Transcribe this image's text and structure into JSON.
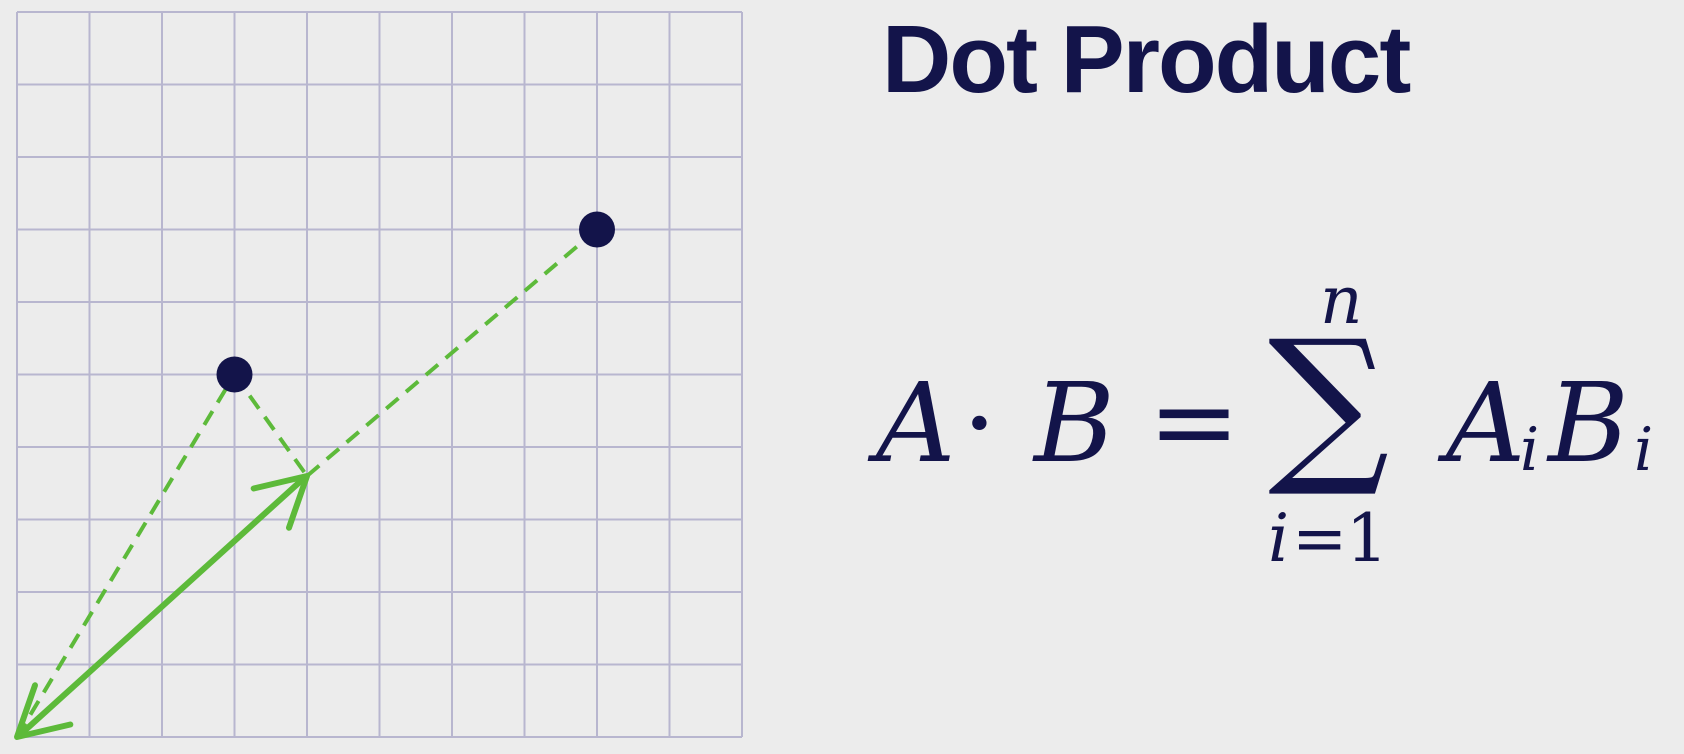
{
  "title": "Dot Product",
  "formula": {
    "lhs_a": "A",
    "dot": "·",
    "lhs_b": "B",
    "equals": "=",
    "sum_symbol": "∑",
    "upper_limit": "n",
    "lower_limit_var": "i",
    "lower_limit_eq": "=",
    "lower_limit_val": "1",
    "term_a": "A",
    "term_a_sub": "i",
    "term_b": "B",
    "term_b_sub": "i"
  },
  "colors": {
    "background": "#ececec",
    "grid": "#b8b6cf",
    "point": "#13144a",
    "projection": "#5dba3a",
    "text": "#13144a"
  },
  "diagram": {
    "grid_cells": [
      10,
      10
    ],
    "point_a": [
      3,
      5
    ],
    "point_b": [
      8,
      7
    ],
    "projection_end": [
      4,
      3.6
    ]
  }
}
